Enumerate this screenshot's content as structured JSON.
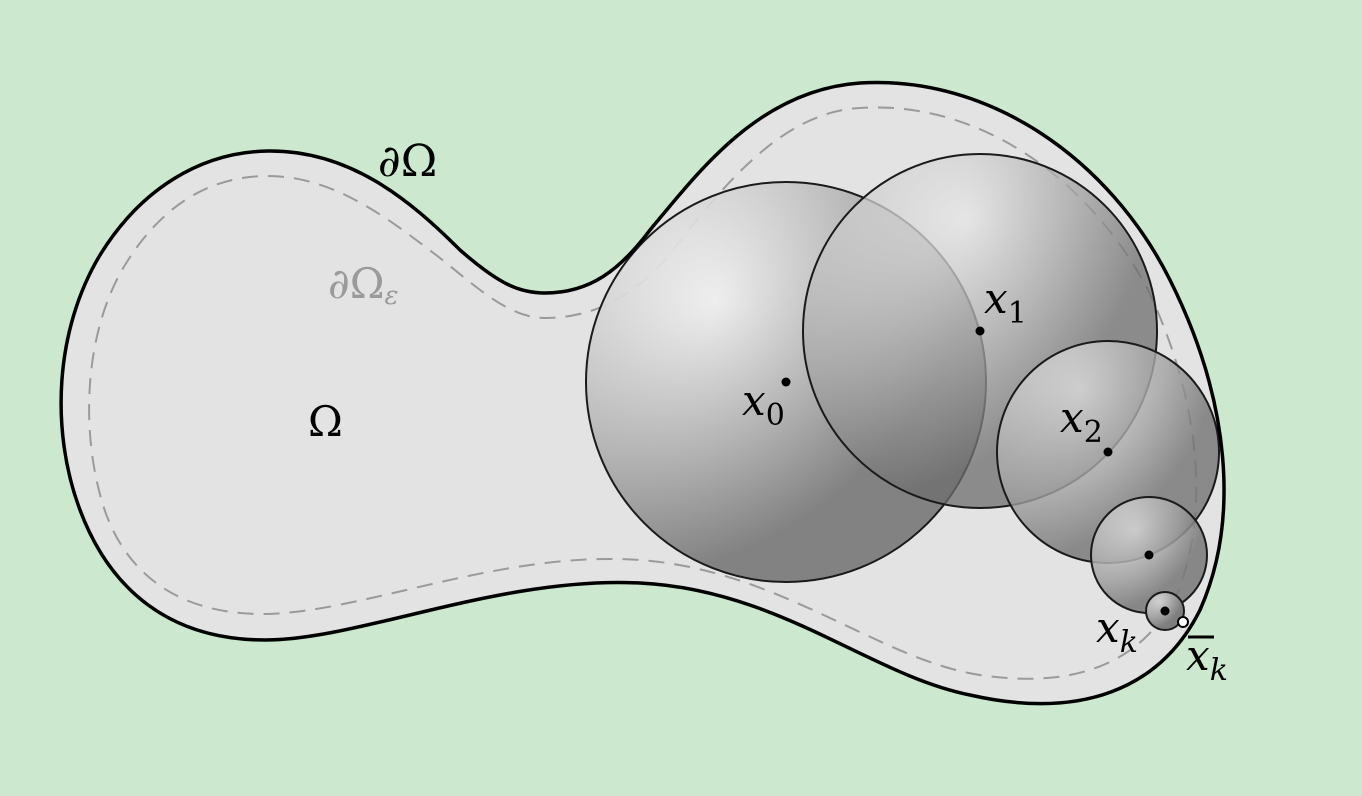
{
  "diagram": {
    "domain_label": "Ω",
    "boundary_label": {
      "symbol": "∂Ω"
    },
    "inner_boundary_label": {
      "symbol": "∂Ω",
      "subscript": "ε"
    },
    "points": [
      {
        "id": "x0",
        "base": "x",
        "sub": "0"
      },
      {
        "id": "x1",
        "base": "x",
        "sub": "1"
      },
      {
        "id": "x2",
        "base": "x",
        "sub": "2"
      },
      {
        "id": "x3",
        "base": "",
        "sub": ""
      },
      {
        "id": "xk",
        "base": "x",
        "sub": "k"
      }
    ],
    "limit_point": {
      "base": "x",
      "sub": "k",
      "overline": true
    },
    "colors": {
      "background": "#cce9cf",
      "domain_fill": "#e3e3e3",
      "boundary_stroke": "#000000",
      "inner_boundary_stroke": "#9a9a9a"
    }
  }
}
